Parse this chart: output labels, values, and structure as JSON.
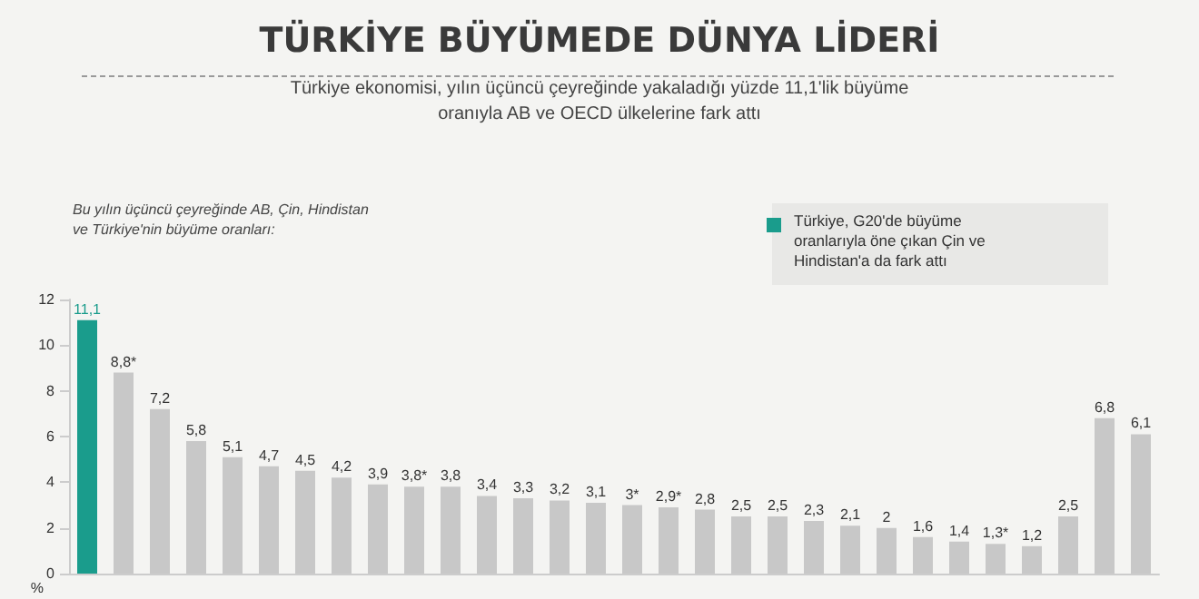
{
  "chart_data": {
    "type": "bar",
    "title": "TÜRKİYE BÜYÜMEDE DÜNYA LİDERİ",
    "subtitle": "Türkiye ekonomisi, yılın üçüncü çeyreğinde yakaladığı yüzde 11,1'lik büyüme\noranıyla AB ve OECD ülkelerine fark attı",
    "ylabel": "%",
    "annotations": [
      "Bu yılın üçüncü çeyreğinde AB, Çin, Hindistan\nve Türkiye'nin büyüme oranları:",
      "Türkiye, G20'de büyüme\noranlarıyla öne çıkan Çin ve\nHindistan'a da fark attı"
    ],
    "categories": [
      null,
      null,
      null,
      null,
      null,
      null,
      null,
      null,
      null,
      null,
      null,
      null,
      null,
      null,
      null,
      null,
      null,
      null,
      null,
      null,
      null,
      null,
      null,
      null,
      null,
      null,
      null,
      null,
      null,
      null
    ],
    "values": [
      11.1,
      8.8,
      7.2,
      5.8,
      5.1,
      4.7,
      4.5,
      4.2,
      3.9,
      3.8,
      3.8,
      3.4,
      3.3,
      3.2,
      3.1,
      3,
      2.9,
      2.8,
      2.5,
      2.5,
      2.3,
      2.1,
      2,
      1.6,
      1.4,
      1.3,
      1.2,
      2.5,
      6.8,
      6.1
    ],
    "value_labels": [
      "11,1",
      "8,8*",
      "7,2",
      "5,8",
      "5,1",
      "4,7",
      "4,5",
      "4,2",
      "3,9",
      "3,8*",
      "3,8",
      "3,4",
      "3,3",
      "3,2",
      "3,1",
      "3*",
      "2,9*",
      "2,8",
      "2,5",
      "2,5",
      "2,3",
      "2,1",
      "2",
      "1,6",
      "1,4",
      "1,3*",
      "1,2",
      "2,5",
      "6,8",
      "6,1"
    ],
    "colors": [
      "#1a9c8c",
      "#c8c8c8",
      "#c8c8c8",
      "#c8c8c8",
      "#c8c8c8",
      "#c8c8c8",
      "#c8c8c8",
      "#c8c8c8",
      "#c8c8c8",
      "#c8c8c8",
      "#c8c8c8",
      "#c8c8c8",
      "#c8c8c8",
      "#c8c8c8",
      "#c8c8c8",
      "#c8c8c8",
      "#c8c8c8",
      "#c8c8c8",
      "#c8c8c8",
      "#c8c8c8",
      "#c8c8c8",
      "#c8c8c8",
      "#c8c8c8",
      "#c8c8c8",
      "#c8c8c8",
      "#c8c8c8",
      "#c8c8c8",
      "#c8c8c8",
      "#c8c8c8",
      "#c8c8c8"
    ],
    "ylim": [
      0,
      12
    ],
    "yticks": [
      0,
      2,
      4,
      6,
      8,
      10,
      12
    ],
    "grid": false
  }
}
